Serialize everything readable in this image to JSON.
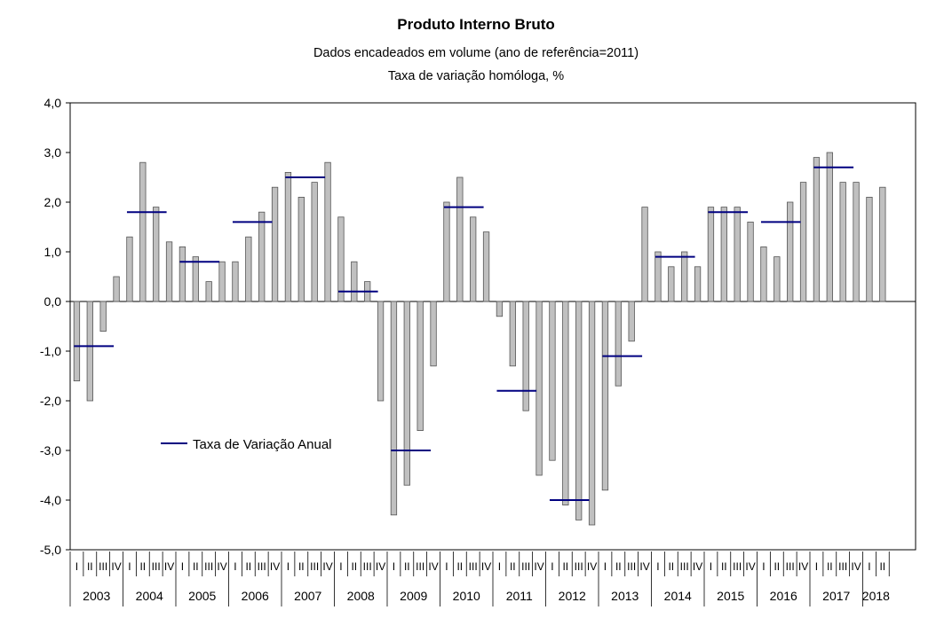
{
  "chart_data": {
    "type": "bar",
    "title": "Produto Interno Bruto",
    "subtitle": "Dados encadeados em volume (ano de referência=2011)",
    "subtitle2": "Taxa de variação homóloga, %",
    "ylim": [
      -5.0,
      4.0
    ],
    "yticks": [
      "4,0",
      "3,0",
      "2,0",
      "1,0",
      "0,0",
      "-1,0",
      "-2,0",
      "-3,0",
      "-4,0",
      "-5,0"
    ],
    "ytick_values": [
      4,
      3,
      2,
      1,
      0,
      -1,
      -2,
      -3,
      -4,
      -5
    ],
    "quarter_labels": [
      "I",
      "II",
      "III",
      "IV"
    ],
    "years": [
      "2003",
      "2004",
      "2005",
      "2006",
      "2007",
      "2008",
      "2009",
      "2010",
      "2011",
      "2012",
      "2013",
      "2014",
      "2015",
      "2016",
      "2017",
      "2018"
    ],
    "quarterly_values": [
      -1.6,
      -2.0,
      -0.6,
      0.5,
      1.3,
      2.8,
      1.9,
      1.2,
      1.1,
      0.9,
      0.4,
      0.8,
      0.8,
      1.3,
      1.8,
      2.3,
      2.6,
      2.1,
      2.4,
      2.8,
      1.7,
      0.8,
      0.4,
      -2.0,
      -4.3,
      -3.7,
      -2.6,
      -1.3,
      2.0,
      2.5,
      1.7,
      1.4,
      -0.3,
      -1.3,
      -2.2,
      -3.5,
      -3.2,
      -4.1,
      -4.4,
      -4.5,
      -3.8,
      -1.7,
      -0.8,
      1.9,
      1.0,
      0.7,
      1.0,
      0.7,
      1.9,
      1.9,
      1.9,
      1.6,
      1.1,
      0.9,
      2.0,
      2.4,
      2.9,
      3.0,
      2.4,
      2.4,
      2.1,
      2.3
    ],
    "series": [
      {
        "name": "Taxa de Variação Anual",
        "color": "#000080",
        "values": [
          -0.9,
          1.8,
          0.8,
          1.6,
          2.5,
          0.2,
          -3.0,
          1.9,
          -1.8,
          -4.0,
          -1.1,
          0.9,
          1.8,
          1.6,
          2.7
        ]
      }
    ],
    "bar_color": "#c0c0c0",
    "legend_placement": "lower-left",
    "grid": false
  }
}
